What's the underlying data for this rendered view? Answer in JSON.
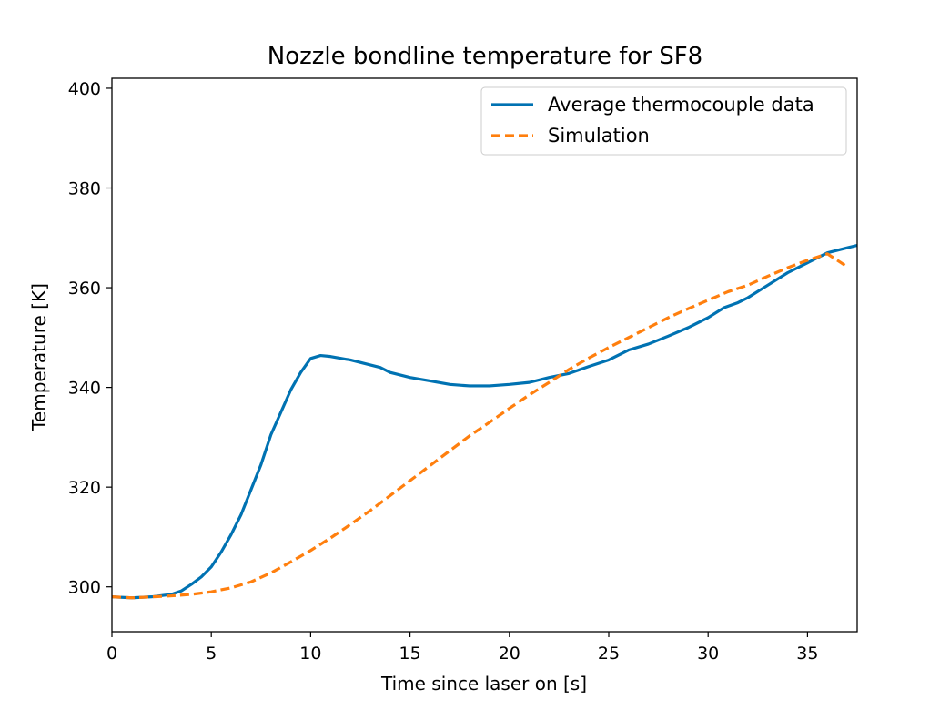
{
  "chart_data": {
    "type": "line",
    "title": "Nozzle bondline temperature for SF8",
    "xlabel": "Time since laser on [s]",
    "ylabel": "Temperature [K]",
    "xlim": [
      0,
      37.5
    ],
    "ylim": [
      291,
      402
    ],
    "xticks": [
      0,
      5,
      10,
      15,
      20,
      25,
      30,
      35
    ],
    "yticks": [
      300,
      320,
      340,
      360,
      380,
      400
    ],
    "grid": false,
    "legend_position": "top-right",
    "series": [
      {
        "name": "Average thermocouple data",
        "color": "#0072b2",
        "style": "solid",
        "x": [
          0,
          1,
          2,
          3,
          3.5,
          4,
          4.5,
          5,
          5.5,
          6,
          6.5,
          7,
          7.5,
          8,
          8.5,
          9,
          9.5,
          10,
          10.5,
          11,
          12,
          13,
          13.5,
          14,
          15,
          16,
          17,
          18,
          19,
          20,
          21,
          22,
          23,
          24,
          25,
          26,
          27,
          28,
          29,
          30,
          30.8,
          31.5,
          32,
          33,
          34,
          35,
          36,
          37,
          37.5
        ],
        "y": [
          298,
          297.8,
          298,
          298.5,
          299.2,
          300.5,
          302,
          304,
          307,
          310.5,
          314.5,
          319.5,
          324.5,
          330.5,
          335,
          339.5,
          343,
          345.8,
          346.4,
          346.2,
          345.5,
          344.5,
          344,
          343,
          342,
          341.3,
          340.6,
          340.3,
          340.3,
          340.6,
          341,
          342,
          342.8,
          344.2,
          345.5,
          347.5,
          348.7,
          350.3,
          352,
          354,
          356,
          357,
          358,
          360.5,
          363,
          365,
          367,
          368,
          368.5
        ]
      },
      {
        "name": "Simulation",
        "color": "#ff7f0e",
        "style": "dashed",
        "x": [
          0,
          1,
          2,
          3,
          4,
          5,
          6,
          7,
          8,
          9,
          10,
          11,
          12,
          13,
          14,
          15,
          16,
          17,
          18,
          19,
          20,
          21,
          22,
          23,
          24,
          25,
          26,
          27,
          28,
          29,
          30,
          31,
          32,
          33,
          34,
          35,
          36,
          37
        ],
        "y": [
          298,
          297.8,
          298,
          298.2,
          298.5,
          299,
          299.8,
          301,
          302.8,
          305,
          307.3,
          309.8,
          312.5,
          315.3,
          318.3,
          321.3,
          324.3,
          327.3,
          330.3,
          333,
          335.8,
          338.5,
          341,
          343.6,
          345.9,
          348,
          350,
          352,
          354,
          355.8,
          357.5,
          359.2,
          360.5,
          362.3,
          364,
          365.5,
          366.8,
          364.2
        ]
      }
    ]
  }
}
